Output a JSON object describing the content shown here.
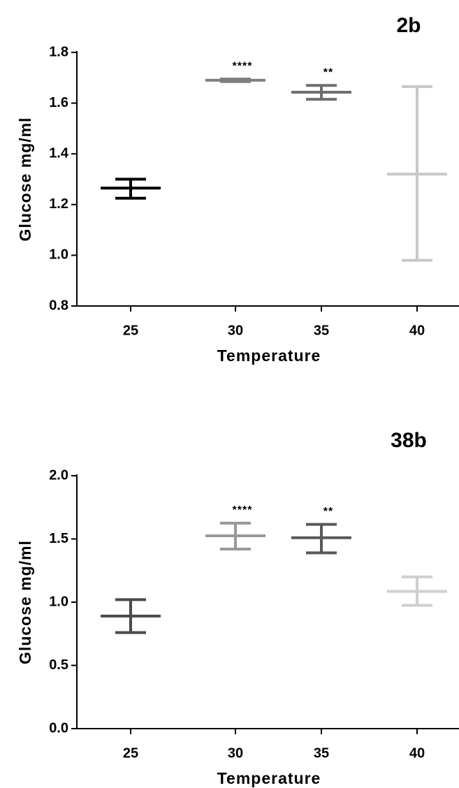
{
  "chart_data": [
    {
      "type": "scatter",
      "title": "2b",
      "xlabel": "Temperature",
      "ylabel": "Glucose mg/ml",
      "categories": [
        "25",
        "30",
        "35",
        "40"
      ],
      "yticks": [
        "0.8",
        "1.0",
        "1.2",
        "1.4",
        "1.6",
        "1.8"
      ],
      "ylim": [
        0.8,
        1.8
      ],
      "grid": false,
      "series": [
        {
          "category": "25",
          "mean": 1.265,
          "upper": 1.3,
          "lower": 1.225,
          "color": "#000000",
          "significance": ""
        },
        {
          "category": "30",
          "mean": 1.69,
          "upper": 1.695,
          "lower": 1.685,
          "color": "#7f7f7f",
          "significance": "****"
        },
        {
          "category": "35",
          "mean": 1.643,
          "upper": 1.67,
          "lower": 1.615,
          "color": "#6e6e6e",
          "significance": "**"
        },
        {
          "category": "40",
          "mean": 1.32,
          "upper": 1.665,
          "lower": 0.98,
          "color": "#c8c8c8",
          "significance": ""
        }
      ]
    },
    {
      "type": "scatter",
      "title": "38b",
      "xlabel": "Temperature",
      "ylabel": "Glucose mg/ml",
      "categories": [
        "25",
        "30",
        "35",
        "40"
      ],
      "yticks": [
        "0.0",
        "0.5",
        "1.0",
        "1.5",
        "2.0"
      ],
      "ylim": [
        0.0,
        2.0
      ],
      "grid": false,
      "series": [
        {
          "category": "25",
          "mean": 0.89,
          "upper": 1.02,
          "lower": 0.76,
          "color": "#4a4a4a",
          "significance": ""
        },
        {
          "category": "30",
          "mean": 1.525,
          "upper": 1.625,
          "lower": 1.42,
          "color": "#999999",
          "significance": "****"
        },
        {
          "category": "35",
          "mean": 1.51,
          "upper": 1.615,
          "lower": 1.39,
          "color": "#595959",
          "significance": "**"
        },
        {
          "category": "40",
          "mean": 1.085,
          "upper": 1.2,
          "lower": 0.975,
          "color": "#cfcfcf",
          "significance": ""
        }
      ]
    }
  ]
}
